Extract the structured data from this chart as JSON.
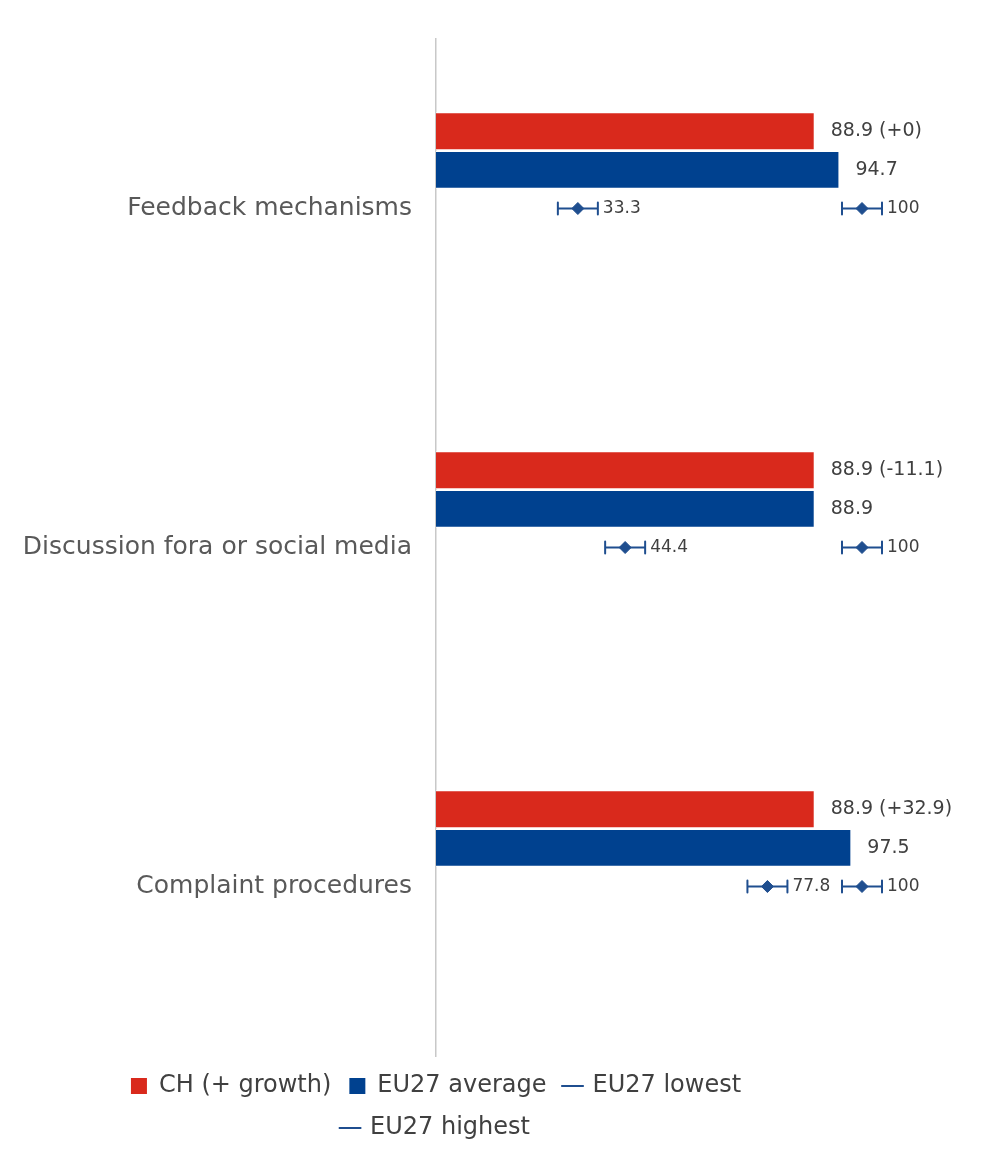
{
  "chart_data": {
    "type": "bar",
    "orientation": "horizontal",
    "categories": [
      "Feedback mechanisms",
      "Discussion fora or social media",
      "Complaint procedures"
    ],
    "series": [
      {
        "name": "CH (+ growth)",
        "color": "#d9291c",
        "values": [
          88.9,
          88.9,
          88.9
        ],
        "value_labels": [
          "88.9 (+0)",
          "88.9 (-11.1)",
          "88.9 (+32.9)"
        ]
      },
      {
        "name": "EU27 average",
        "color": "#00418f",
        "values": [
          94.7,
          88.9,
          97.5
        ]
      },
      {
        "name": "EU27 lowest",
        "type": "scatter",
        "color": "#1f4e8f",
        "values": [
          33.3,
          44.4,
          77.8
        ]
      },
      {
        "name": "EU27 highest",
        "type": "scatter",
        "color": "#1f4e8f",
        "values": [
          100,
          100,
          100
        ]
      }
    ],
    "data_labels": true,
    "marker": "diamond",
    "legend": "bottom",
    "tick_labels": "y",
    "grid": false
  }
}
